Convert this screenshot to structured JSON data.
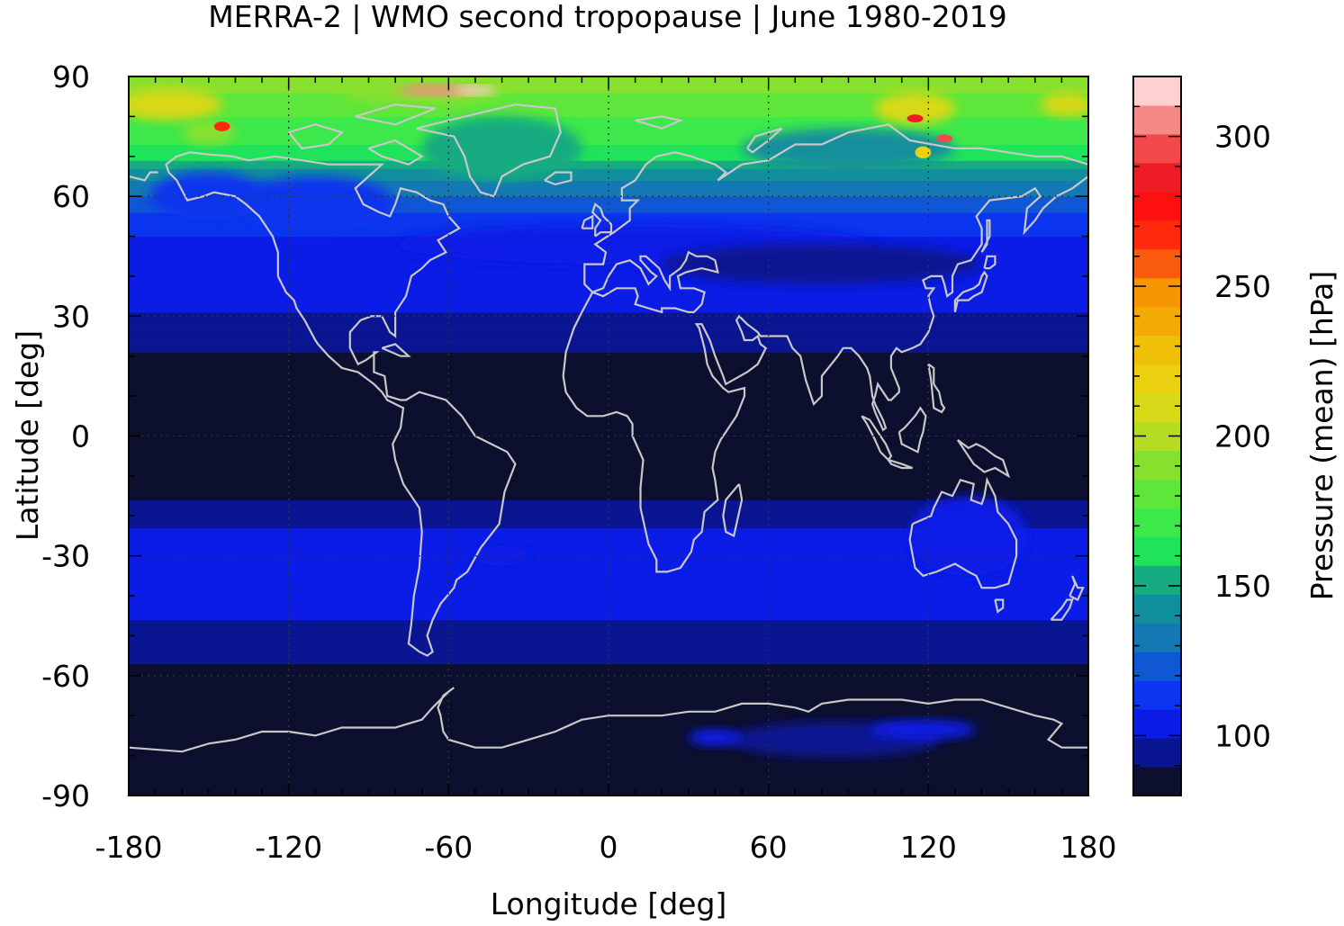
{
  "chart_data": {
    "type": "heatmap",
    "title": "MERRA-2 | WMO second tropopause | June 1980-2019",
    "xlabel": "Longitude [deg]",
    "ylabel": "Latitude [deg]",
    "xlim": [
      -180,
      180
    ],
    "ylim": [
      -90,
      90
    ],
    "x_ticks": [
      "-180",
      "-120",
      "-60",
      "0",
      "60",
      "120",
      "180"
    ],
    "y_ticks": [
      "90",
      "60",
      "30",
      "0",
      "-30",
      "-60",
      "-90"
    ],
    "grid": true,
    "colorbar": {
      "label": "Pressure (mean) [hPa]",
      "range": [
        80,
        320
      ],
      "ticks": [
        "100",
        "150",
        "200",
        "250",
        "300"
      ],
      "colors": [
        "#0c0f2e",
        "#0a1591",
        "#0a1ce6",
        "#0b35ee",
        "#1057d4",
        "#1478b4",
        "#128f9c",
        "#16ab80",
        "#1fe35a",
        "#3de84a",
        "#5ee63a",
        "#88e02e",
        "#b5dc22",
        "#d8d818",
        "#ead00e",
        "#f0bf08",
        "#f4aa04",
        "#f79502",
        "#fb5b0c",
        "#ff2a0e",
        "#ff1010",
        "#ee1c24",
        "#f24a4a",
        "#f78888",
        "#ffd0d0"
      ]
    },
    "zonal_mean_pressure": {
      "lat": [
        -90,
        -75,
        -60,
        -50,
        -45,
        -40,
        -35,
        -30,
        -25,
        -20,
        -15,
        -10,
        0,
        10,
        20,
        25,
        30,
        35,
        40,
        45,
        50,
        55,
        60,
        65,
        70,
        75,
        80,
        85,
        90
      ],
      "hPa": [
        88,
        88,
        88,
        93,
        100,
        102,
        105,
        103,
        102,
        96,
        88,
        86,
        86,
        86,
        88,
        94,
        98,
        102,
        104,
        106,
        108,
        116,
        128,
        140,
        160,
        172,
        175,
        185,
        190
      ]
    },
    "coastline_color": "#c8c8c8"
  }
}
